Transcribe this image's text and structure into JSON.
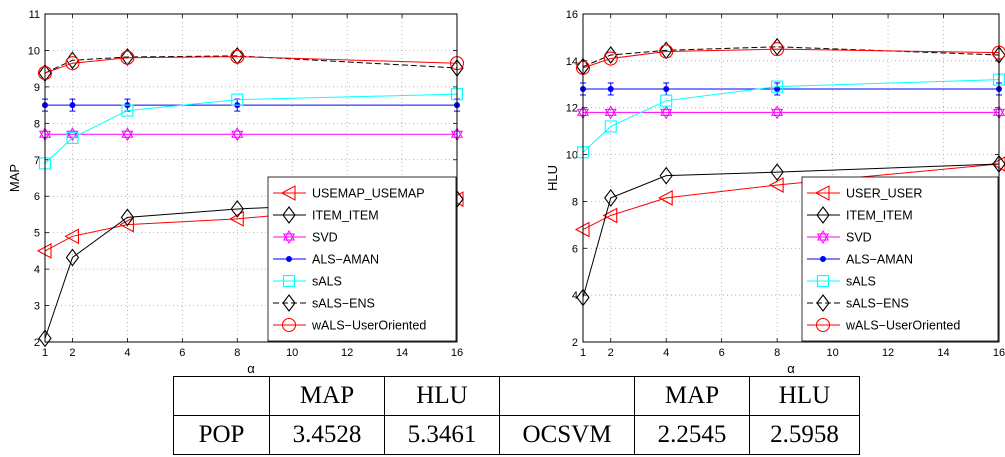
{
  "chart_data": [
    {
      "type": "line",
      "ylabel": "MAP",
      "xlabel": "α",
      "xlim": [
        1,
        16
      ],
      "ylim": [
        2,
        11
      ],
      "xticks": [
        1,
        2,
        4,
        6,
        8,
        10,
        12,
        14,
        16
      ],
      "yticks": [
        2,
        3,
        4,
        5,
        6,
        7,
        8,
        9,
        10,
        11
      ],
      "grid": true,
      "legend_position": "bottom-right",
      "x": [
        1,
        2,
        4,
        8,
        16
      ],
      "series": [
        {
          "name": "USEMAP_USEMAP",
          "color": "#ff0000",
          "marker": "triangle-left",
          "line": "solid",
          "values": [
            4.5,
            4.9,
            5.22,
            5.38,
            5.92
          ]
        },
        {
          "name": "ITEM_ITEM",
          "color": "#000000",
          "marker": "diamond",
          "line": "solid",
          "values": [
            2.1,
            4.32,
            5.42,
            5.65,
            5.92
          ]
        },
        {
          "name": "SVD",
          "color": "#ff00ff",
          "marker": "hexagram",
          "line": "solid",
          "values": [
            7.7,
            7.7,
            7.7,
            7.7,
            7.7
          ]
        },
        {
          "name": "ALS−AMAN",
          "color": "#0000ff",
          "marker": "dot",
          "line": "solid",
          "errorbars": true,
          "values": [
            8.5,
            8.5,
            8.5,
            8.5,
            8.5
          ]
        },
        {
          "name": "sALS",
          "color": "#00ffff",
          "marker": "square",
          "line": "solid",
          "values": [
            6.9,
            7.6,
            8.35,
            8.65,
            8.8
          ]
        },
        {
          "name": "sALS−ENS",
          "color": "#000000",
          "marker": "diamond",
          "line": "dashed",
          "values": [
            9.38,
            9.73,
            9.82,
            9.85,
            9.52
          ]
        },
        {
          "name": "wALS−UserOriented",
          "color": "#ff0000",
          "marker": "circle",
          "line": "solid",
          "values": [
            9.38,
            9.65,
            9.8,
            9.83,
            9.65
          ]
        }
      ]
    },
    {
      "type": "line",
      "ylabel": "HLU",
      "xlabel": "α",
      "xlim": [
        1,
        16
      ],
      "ylim": [
        2,
        16
      ],
      "xticks": [
        1,
        2,
        4,
        6,
        8,
        10,
        12,
        14,
        16
      ],
      "yticks": [
        2,
        4,
        6,
        8,
        10,
        12,
        14,
        16
      ],
      "grid": true,
      "legend_position": "bottom-right",
      "x": [
        1,
        2,
        4,
        8,
        16
      ],
      "series": [
        {
          "name": "USER_USER",
          "color": "#ff0000",
          "marker": "triangle-left",
          "line": "solid",
          "values": [
            6.8,
            7.4,
            8.15,
            8.7,
            9.6
          ]
        },
        {
          "name": "ITEM_ITEM",
          "color": "#000000",
          "marker": "diamond",
          "line": "solid",
          "values": [
            3.9,
            8.15,
            9.1,
            9.25,
            9.6
          ]
        },
        {
          "name": "SVD",
          "color": "#ff00ff",
          "marker": "hexagram",
          "line": "solid",
          "values": [
            11.8,
            11.8,
            11.8,
            11.8,
            11.8
          ]
        },
        {
          "name": "ALS−AMAN",
          "color": "#0000ff",
          "marker": "dot",
          "line": "solid",
          "errorbars": true,
          "values": [
            12.8,
            12.8,
            12.8,
            12.8,
            12.8
          ]
        },
        {
          "name": "sALS",
          "color": "#00ffff",
          "marker": "square",
          "line": "solid",
          "values": [
            10.1,
            11.2,
            12.3,
            12.9,
            13.2
          ]
        },
        {
          "name": "sALS−ENS",
          "color": "#000000",
          "marker": "diamond",
          "line": "dashed",
          "values": [
            13.75,
            14.25,
            14.45,
            14.6,
            14.25
          ]
        },
        {
          "name": "wALS−UserOriented",
          "color": "#ff0000",
          "marker": "circle",
          "line": "solid",
          "values": [
            13.7,
            14.1,
            14.4,
            14.5,
            14.35
          ]
        }
      ]
    }
  ],
  "table": {
    "rows": [
      [
        "",
        "MAP",
        "HLU",
        "",
        "MAP",
        "HLU"
      ],
      [
        "POP",
        "3.4528",
        "5.3461",
        "OCSVM",
        "2.2545",
        "2.5958"
      ]
    ]
  }
}
